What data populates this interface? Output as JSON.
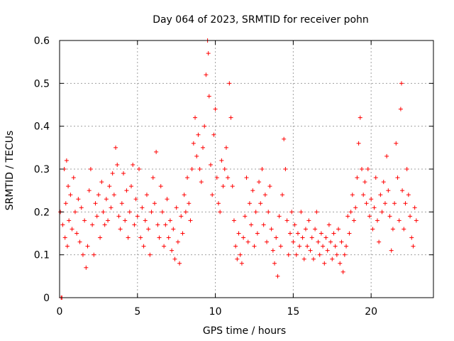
{
  "chart_data": {
    "type": "scatter",
    "title": "Day 064 of 2023, SRMTID for receiver pohn",
    "xlabel": "GPS time / hours",
    "ylabel": "SRMTID / TECUs",
    "xlim": [
      0,
      24
    ],
    "ylim": [
      0,
      0.6
    ],
    "xticks": [
      0,
      5,
      10,
      15,
      20
    ],
    "xtick_labels": [
      "0",
      "5",
      "10",
      "15",
      "20"
    ],
    "yticks": [
      0,
      0.1,
      0.2,
      0.3,
      0.4,
      0.5,
      0.6
    ],
    "ytick_labels": [
      "0",
      "0.1",
      "0.2",
      "0.3",
      "0.4",
      "0.5",
      "0.6"
    ],
    "grid": true,
    "marker": "+",
    "color": "#ff0000",
    "series": [
      {
        "name": "SRMTID",
        "points": [
          [
            0.1,
            0.0
          ],
          [
            0.15,
            0.0
          ],
          [
            0.05,
            0.2
          ],
          [
            0.2,
            0.17
          ],
          [
            0.3,
            0.3
          ],
          [
            0.35,
            0.14
          ],
          [
            0.4,
            0.22
          ],
          [
            0.45,
            0.32
          ],
          [
            0.5,
            0.12
          ],
          [
            0.55,
            0.26
          ],
          [
            0.6,
            0.18
          ],
          [
            0.7,
            0.24
          ],
          [
            0.8,
            0.16
          ],
          [
            0.9,
            0.28
          ],
          [
            1.0,
            0.2
          ],
          [
            1.1,
            0.15
          ],
          [
            1.2,
            0.23
          ],
          [
            1.3,
            0.13
          ],
          [
            1.4,
            0.21
          ],
          [
            1.5,
            0.1
          ],
          [
            1.6,
            0.18
          ],
          [
            1.7,
            0.07
          ],
          [
            1.8,
            0.12
          ],
          [
            1.9,
            0.25
          ],
          [
            2.0,
            0.3
          ],
          [
            2.1,
            0.17
          ],
          [
            2.2,
            0.1
          ],
          [
            2.3,
            0.22
          ],
          [
            2.4,
            0.19
          ],
          [
            2.5,
            0.24
          ],
          [
            2.6,
            0.14
          ],
          [
            2.7,
            0.27
          ],
          [
            2.8,
            0.2
          ],
          [
            2.9,
            0.17
          ],
          [
            3.0,
            0.23
          ],
          [
            3.1,
            0.18
          ],
          [
            3.2,
            0.26
          ],
          [
            3.3,
            0.21
          ],
          [
            3.4,
            0.29
          ],
          [
            3.5,
            0.24
          ],
          [
            3.6,
            0.35
          ],
          [
            3.7,
            0.31
          ],
          [
            3.8,
            0.19
          ],
          [
            3.9,
            0.16
          ],
          [
            4.0,
            0.22
          ],
          [
            4.1,
            0.29
          ],
          [
            4.2,
            0.18
          ],
          [
            4.3,
            0.25
          ],
          [
            4.4,
            0.14
          ],
          [
            4.5,
            0.2
          ],
          [
            4.6,
            0.26
          ],
          [
            4.7,
            0.31
          ],
          [
            4.8,
            0.17
          ],
          [
            4.9,
            0.23
          ],
          [
            5.0,
            0.19
          ],
          [
            5.1,
            0.3
          ],
          [
            5.2,
            0.14
          ],
          [
            5.3,
            0.21
          ],
          [
            5.4,
            0.12
          ],
          [
            5.5,
            0.18
          ],
          [
            5.6,
            0.24
          ],
          [
            5.7,
            0.16
          ],
          [
            5.8,
            0.1
          ],
          [
            5.9,
            0.2
          ],
          [
            6.0,
            0.28
          ],
          [
            6.1,
            0.22
          ],
          [
            6.2,
            0.34
          ],
          [
            6.3,
            0.17
          ],
          [
            6.4,
            0.14
          ],
          [
            6.5,
            0.26
          ],
          [
            6.6,
            0.2
          ],
          [
            6.7,
            0.12
          ],
          [
            6.8,
            0.17
          ],
          [
            6.9,
            0.23
          ],
          [
            7.0,
            0.14
          ],
          [
            7.1,
            0.18
          ],
          [
            7.2,
            0.11
          ],
          [
            7.3,
            0.16
          ],
          [
            7.4,
            0.09
          ],
          [
            7.5,
            0.21
          ],
          [
            7.6,
            0.13
          ],
          [
            7.7,
            0.08
          ],
          [
            7.8,
            0.19
          ],
          [
            7.9,
            0.15
          ],
          [
            8.0,
            0.24
          ],
          [
            8.1,
            0.2
          ],
          [
            8.2,
            0.28
          ],
          [
            8.3,
            0.22
          ],
          [
            8.4,
            0.18
          ],
          [
            8.5,
            0.3
          ],
          [
            8.6,
            0.36
          ],
          [
            8.7,
            0.42
          ],
          [
            8.8,
            0.33
          ],
          [
            8.9,
            0.38
          ],
          [
            9.0,
            0.3
          ],
          [
            9.1,
            0.27
          ],
          [
            9.2,
            0.35
          ],
          [
            9.3,
            0.4
          ],
          [
            9.4,
            0.52
          ],
          [
            9.5,
            0.6
          ],
          [
            9.55,
            0.57
          ],
          [
            9.6,
            0.47
          ],
          [
            9.7,
            0.31
          ],
          [
            9.8,
            0.24
          ],
          [
            9.9,
            0.38
          ],
          [
            10.0,
            0.44
          ],
          [
            10.1,
            0.28
          ],
          [
            10.2,
            0.22
          ],
          [
            10.3,
            0.2
          ],
          [
            10.4,
            0.32
          ],
          [
            10.5,
            0.26
          ],
          [
            10.6,
            0.3
          ],
          [
            10.7,
            0.35
          ],
          [
            10.8,
            0.28
          ],
          [
            10.9,
            0.5
          ],
          [
            11.0,
            0.42
          ],
          [
            11.1,
            0.26
          ],
          [
            11.2,
            0.18
          ],
          [
            11.3,
            0.12
          ],
          [
            11.4,
            0.09
          ],
          [
            11.5,
            0.15
          ],
          [
            11.6,
            0.1
          ],
          [
            11.7,
            0.08
          ],
          [
            11.8,
            0.14
          ],
          [
            11.9,
            0.19
          ],
          [
            12.0,
            0.28
          ],
          [
            12.1,
            0.13
          ],
          [
            12.2,
            0.22
          ],
          [
            12.3,
            0.17
          ],
          [
            12.4,
            0.25
          ],
          [
            12.5,
            0.12
          ],
          [
            12.6,
            0.2
          ],
          [
            12.7,
            0.15
          ],
          [
            12.8,
            0.27
          ],
          [
            12.9,
            0.22
          ],
          [
            13.0,
            0.3
          ],
          [
            13.1,
            0.17
          ],
          [
            13.2,
            0.24
          ],
          [
            13.3,
            0.13
          ],
          [
            13.4,
            0.2
          ],
          [
            13.5,
            0.26
          ],
          [
            13.6,
            0.16
          ],
          [
            13.7,
            0.11
          ],
          [
            13.8,
            0.08
          ],
          [
            13.9,
            0.14
          ],
          [
            14.0,
            0.05
          ],
          [
            14.1,
            0.19
          ],
          [
            14.2,
            0.12
          ],
          [
            14.3,
            0.24
          ],
          [
            14.4,
            0.37
          ],
          [
            14.5,
            0.3
          ],
          [
            14.6,
            0.18
          ],
          [
            14.7,
            0.1
          ],
          [
            14.8,
            0.15
          ],
          [
            14.9,
            0.2
          ],
          [
            15.0,
            0.13
          ],
          [
            15.1,
            0.17
          ],
          [
            15.2,
            0.1
          ],
          [
            15.3,
            0.15
          ],
          [
            15.4,
            0.12
          ],
          [
            15.5,
            0.2
          ],
          [
            15.6,
            0.14
          ],
          [
            15.7,
            0.09
          ],
          [
            15.8,
            0.16
          ],
          [
            15.9,
            0.12
          ],
          [
            16.0,
            0.18
          ],
          [
            16.1,
            0.11
          ],
          [
            16.2,
            0.14
          ],
          [
            16.3,
            0.09
          ],
          [
            16.4,
            0.16
          ],
          [
            16.5,
            0.2
          ],
          [
            16.6,
            0.13
          ],
          [
            16.7,
            0.1
          ],
          [
            16.8,
            0.15
          ],
          [
            16.9,
            0.12
          ],
          [
            17.0,
            0.08
          ],
          [
            17.1,
            0.14
          ],
          [
            17.2,
            0.11
          ],
          [
            17.3,
            0.17
          ],
          [
            17.4,
            0.13
          ],
          [
            17.5,
            0.09
          ],
          [
            17.6,
            0.15
          ],
          [
            17.7,
            0.12
          ],
          [
            17.8,
            0.1
          ],
          [
            17.9,
            0.16
          ],
          [
            18.0,
            0.08
          ],
          [
            18.1,
            0.13
          ],
          [
            18.2,
            0.06
          ],
          [
            18.3,
            0.1
          ],
          [
            18.4,
            0.12
          ],
          [
            18.5,
            0.19
          ],
          [
            18.6,
            0.15
          ],
          [
            18.7,
            0.2
          ],
          [
            18.8,
            0.24
          ],
          [
            18.9,
            0.18
          ],
          [
            19.0,
            0.21
          ],
          [
            19.1,
            0.28
          ],
          [
            19.2,
            0.36
          ],
          [
            19.3,
            0.42
          ],
          [
            19.4,
            0.3
          ],
          [
            19.5,
            0.24
          ],
          [
            19.6,
            0.27
          ],
          [
            19.7,
            0.22
          ],
          [
            19.8,
            0.3
          ],
          [
            19.9,
            0.19
          ],
          [
            20.0,
            0.23
          ],
          [
            20.1,
            0.16
          ],
          [
            20.2,
            0.21
          ],
          [
            20.3,
            0.28
          ],
          [
            20.4,
            0.18
          ],
          [
            20.5,
            0.13
          ],
          [
            20.6,
            0.24
          ],
          [
            20.7,
            0.2
          ],
          [
            20.8,
            0.27
          ],
          [
            20.9,
            0.22
          ],
          [
            21.0,
            0.33
          ],
          [
            21.1,
            0.25
          ],
          [
            21.2,
            0.19
          ],
          [
            21.3,
            0.11
          ],
          [
            21.4,
            0.16
          ],
          [
            21.5,
            0.22
          ],
          [
            21.6,
            0.36
          ],
          [
            21.7,
            0.28
          ],
          [
            21.8,
            0.18
          ],
          [
            21.9,
            0.44
          ],
          [
            21.95,
            0.5
          ],
          [
            22.0,
            0.25
          ],
          [
            22.1,
            0.16
          ],
          [
            22.2,
            0.22
          ],
          [
            22.3,
            0.3
          ],
          [
            22.4,
            0.24
          ],
          [
            22.5,
            0.19
          ],
          [
            22.6,
            0.14
          ],
          [
            22.7,
            0.12
          ],
          [
            22.8,
            0.21
          ],
          [
            22.9,
            0.18
          ]
        ]
      }
    ]
  }
}
